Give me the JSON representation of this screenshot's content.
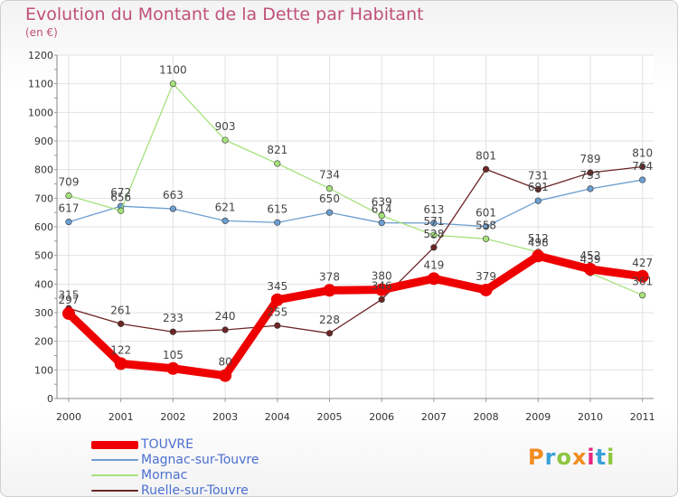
{
  "chart_title": "Evolution du Montant de la Dette par Habitant",
  "chart_subtitle": "(en €)",
  "logo": {
    "text": "Proxiti",
    "colors": [
      "#f28c1e",
      "#3aa0d8",
      "#8cc63f",
      "#f28c1e",
      "#e6257e",
      "#3aa0d8",
      "#8cc63f"
    ]
  },
  "chart_data": {
    "type": "line",
    "title": "Evolution du Montant de la Dette par Habitant",
    "subtitle": "(en €)",
    "x": [
      "2000",
      "2001",
      "2002",
      "2003",
      "2004",
      "2005",
      "2006",
      "2007",
      "2008",
      "2009",
      "2010",
      "2011"
    ],
    "ylim": [
      0,
      1200
    ],
    "yticks": [
      0,
      100,
      200,
      300,
      400,
      500,
      600,
      700,
      800,
      900,
      1000,
      1100,
      1200
    ],
    "grid": true,
    "legend_position": "bottom-left",
    "series": [
      {
        "name": "TOUVRE",
        "color": "#ee0000",
        "values": [
          297,
          122,
          105,
          80,
          345,
          378,
          380,
          419,
          379,
          498,
          452,
          427
        ]
      },
      {
        "name": "Magnac-sur-Touvre",
        "color": "#6c9ed0",
        "values": [
          617,
          672,
          663,
          621,
          615,
          650,
          614,
          613,
          601,
          691,
          733,
          764
        ]
      },
      {
        "name": "Mornac",
        "color": "#a6e27c",
        "values": [
          709,
          656,
          1100,
          903,
          821,
          734,
          639,
          571,
          558,
          512,
          439,
          361
        ]
      },
      {
        "name": "Ruelle-sur-Touvre",
        "color": "#6d2525",
        "values": [
          315,
          261,
          233,
          240,
          255,
          228,
          346,
          528,
          801,
          731,
          789,
          810
        ]
      }
    ]
  }
}
